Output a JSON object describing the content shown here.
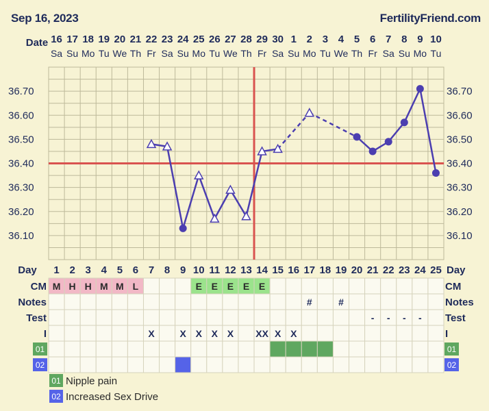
{
  "header": {
    "chart_date": "Sep 16, 2023",
    "brand": "FertilityFriend.com"
  },
  "row_labels": {
    "date": "Date",
    "day": "Day",
    "cm": "CM",
    "notes": "Notes",
    "test": "Test",
    "intercourse": "I"
  },
  "colors": {
    "background": "#f7f3d4",
    "grid": "#bdb99a",
    "line": "#4b3eb0",
    "coverline": "#d9534f",
    "ovulation": "#d9534f",
    "cm_fertile": "#f2b8c6",
    "cm_egg_white": "#9be38c",
    "custom_01": "#5fa760",
    "custom_02": "#5563e8"
  },
  "dates": [
    "16",
    "17",
    "18",
    "19",
    "20",
    "21",
    "22",
    "23",
    "24",
    "25",
    "26",
    "27",
    "28",
    "29",
    "30",
    "1",
    "2",
    "3",
    "4",
    "5",
    "6",
    "7",
    "8",
    "9",
    "10"
  ],
  "weekdays": [
    "Sa",
    "Su",
    "Mo",
    "Tu",
    "We",
    "Th",
    "Fr",
    "Sa",
    "Su",
    "Mo",
    "Tu",
    "We",
    "Th",
    "Fr",
    "Sa",
    "Su",
    "Mo",
    "Tu",
    "We",
    "Th",
    "Fr",
    "Sa",
    "Su",
    "Mo",
    "Tu"
  ],
  "cycle_days": [
    "1",
    "2",
    "3",
    "4",
    "5",
    "6",
    "7",
    "8",
    "9",
    "10",
    "11",
    "12",
    "13",
    "14",
    "15",
    "16",
    "17",
    "18",
    "19",
    "20",
    "21",
    "22",
    "23",
    "24",
    "25"
  ],
  "cm": [
    "M",
    "H",
    "H",
    "M",
    "M",
    "L",
    "",
    "",
    "",
    "E",
    "E",
    "E",
    "E",
    "E",
    "",
    "",
    "",
    "",
    "",
    "",
    "",
    "",
    "",
    "",
    ""
  ],
  "notes": [
    "",
    "",
    "",
    "",
    "",
    "",
    "",
    "",
    "",
    "",
    "",
    "",
    "",
    "",
    "",
    "",
    "#",
    "",
    "#",
    "",
    "",
    "",
    "",
    "",
    ""
  ],
  "test": [
    "",
    "",
    "",
    "",
    "",
    "",
    "",
    "",
    "",
    "",
    "",
    "",
    "",
    "",
    "",
    "",
    "",
    "",
    "",
    "",
    "-",
    "-",
    "-",
    "-",
    ""
  ],
  "intercourse": [
    "",
    "",
    "",
    "",
    "",
    "",
    "X",
    "",
    "X",
    "X",
    "X",
    "X",
    "",
    "XX",
    "X",
    "X",
    "",
    "",
    "",
    "",
    "",
    "",
    "",
    "",
    ""
  ],
  "custom_codes": [
    {
      "code": "01",
      "label": "Nipple pain",
      "days": [
        15,
        16,
        17,
        18
      ]
    },
    {
      "code": "02",
      "label": "Increased Sex Drive",
      "days": [
        9
      ]
    }
  ],
  "chart_data": {
    "type": "line",
    "title": "",
    "xlabel": "Day",
    "ylabel": "",
    "x": [
      7,
      8,
      9,
      10,
      11,
      12,
      13,
      14,
      15,
      17,
      20,
      21,
      22,
      23,
      24,
      25
    ],
    "y": [
      36.48,
      36.47,
      36.13,
      36.35,
      36.17,
      36.29,
      36.18,
      36.45,
      36.46,
      36.61,
      36.51,
      36.45,
      36.49,
      36.57,
      36.71,
      36.36
    ],
    "markers": [
      "open-triangle",
      "open-triangle",
      "dot",
      "open-triangle",
      "open-triangle",
      "open-triangle",
      "open-triangle",
      "open-triangle",
      "open-triangle",
      "open-triangle",
      "dot",
      "dot",
      "dot",
      "dot",
      "dot",
      "dot"
    ],
    "dashed_segments": [
      [
        15,
        17
      ],
      [
        17,
        20
      ]
    ],
    "coverline": 36.4,
    "ovulation_day": 13,
    "y_ticks": [
      "36.10",
      "36.20",
      "36.30",
      "36.40",
      "36.50",
      "36.60",
      "36.70"
    ],
    "ylim": [
      36.0,
      36.8
    ],
    "grid": true
  }
}
